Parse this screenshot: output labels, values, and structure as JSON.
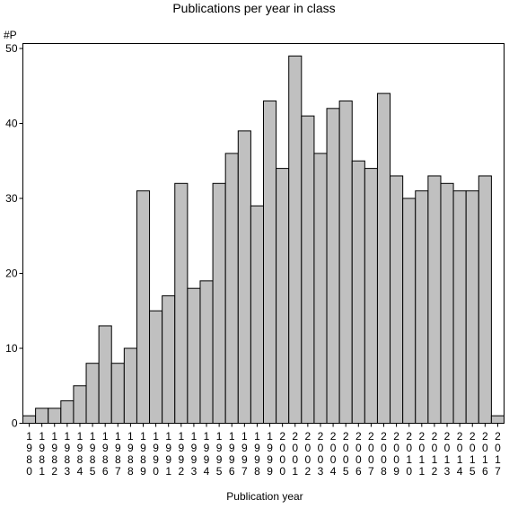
{
  "chart_data": {
    "type": "bar",
    "title": "Publications per year in class",
    "ylabel": "#P",
    "xlabel": "Publication year",
    "ylim": [
      0,
      50
    ],
    "yticks": [
      0,
      10,
      20,
      30,
      40,
      50
    ],
    "categories": [
      "1980",
      "1981",
      "1982",
      "1983",
      "1984",
      "1985",
      "1986",
      "1987",
      "1988",
      "1989",
      "1990",
      "1991",
      "1992",
      "1993",
      "1994",
      "1995",
      "1996",
      "1997",
      "1998",
      "1999",
      "2000",
      "2001",
      "2002",
      "2003",
      "2004",
      "2005",
      "2006",
      "2007",
      "2008",
      "2009",
      "2010",
      "2011",
      "2012",
      "2013",
      "2014",
      "2015",
      "2016",
      "2017"
    ],
    "values": [
      1,
      2,
      2,
      3,
      5,
      8,
      13,
      8,
      10,
      31,
      15,
      17,
      32,
      18,
      19,
      32,
      36,
      39,
      29,
      43,
      34,
      49,
      41,
      36,
      42,
      43,
      35,
      34,
      44,
      33,
      30,
      31,
      33,
      32,
      31,
      31,
      33,
      1
    ],
    "bar_color": "#c0c0c0",
    "bar_edge_color": "#000000",
    "grid": false
  }
}
